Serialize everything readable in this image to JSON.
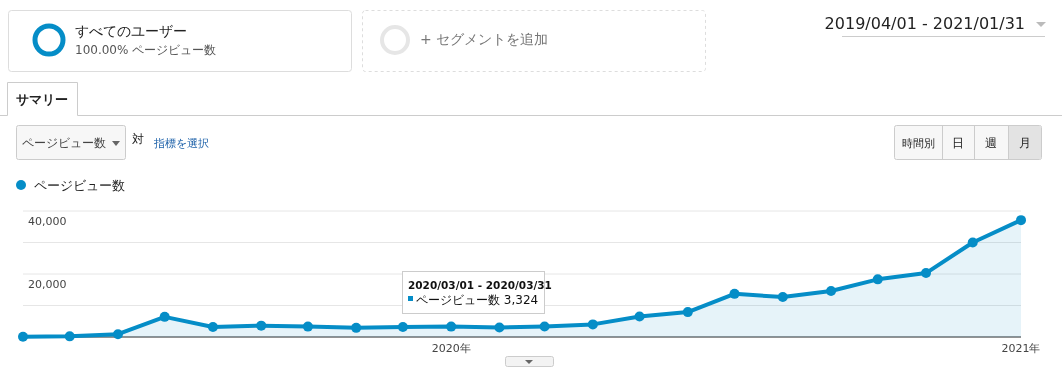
{
  "chart_data": {
    "type": "area",
    "x": [
      "2019-04",
      "2019-05",
      "2019-06",
      "2019-07",
      "2019-08",
      "2019-09",
      "2019-10",
      "2019-11",
      "2019-12",
      "2020-01",
      "2020-02",
      "2020-03",
      "2020-04",
      "2020-05",
      "2020-06",
      "2020-07",
      "2020-08",
      "2020-09",
      "2020-10",
      "2020-11",
      "2020-12",
      "2021-01"
    ],
    "series": [
      {
        "name": "ページビュー数",
        "color": "#058dc7",
        "values": [
          100,
          200,
          900,
          6400,
          3200,
          3600,
          3300,
          2900,
          3200,
          3300,
          3000,
          3324,
          4000,
          6500,
          7900,
          13700,
          12700,
          14600,
          18300,
          20300,
          30000,
          37100
        ]
      }
    ],
    "xlim": [
      "2019-04",
      "2021-01"
    ],
    "xticks": [
      {
        "value": "2020-01",
        "label": "2020年"
      },
      {
        "value": "2021-01",
        "label": "2021年"
      }
    ],
    "ylim": [
      0,
      40000
    ],
    "yticks": [
      {
        "value": 0,
        "label": null
      },
      {
        "value": 10000,
        "label": null
      },
      {
        "value": 20000,
        "label": "20,000"
      },
      {
        "value": 30000,
        "label": null
      },
      {
        "value": 40000,
        "label": "40,000"
      }
    ],
    "grid": "y",
    "legend": "top left",
    "marker": "circle",
    "line_style": "solid",
    "annotations": [
      "2020/03/01 - 2020/03/31",
      "ページビュー数 3,324",
      "すべてのユーザー",
      "100.00% ページビュー数",
      "+ セグメントを追加",
      "2019/04/01 - 2021/01/31",
      "サマリー",
      "ページビュー数",
      "対",
      "指標を選択",
      "時間別",
      "日",
      "週",
      "月"
    ]
  }
}
